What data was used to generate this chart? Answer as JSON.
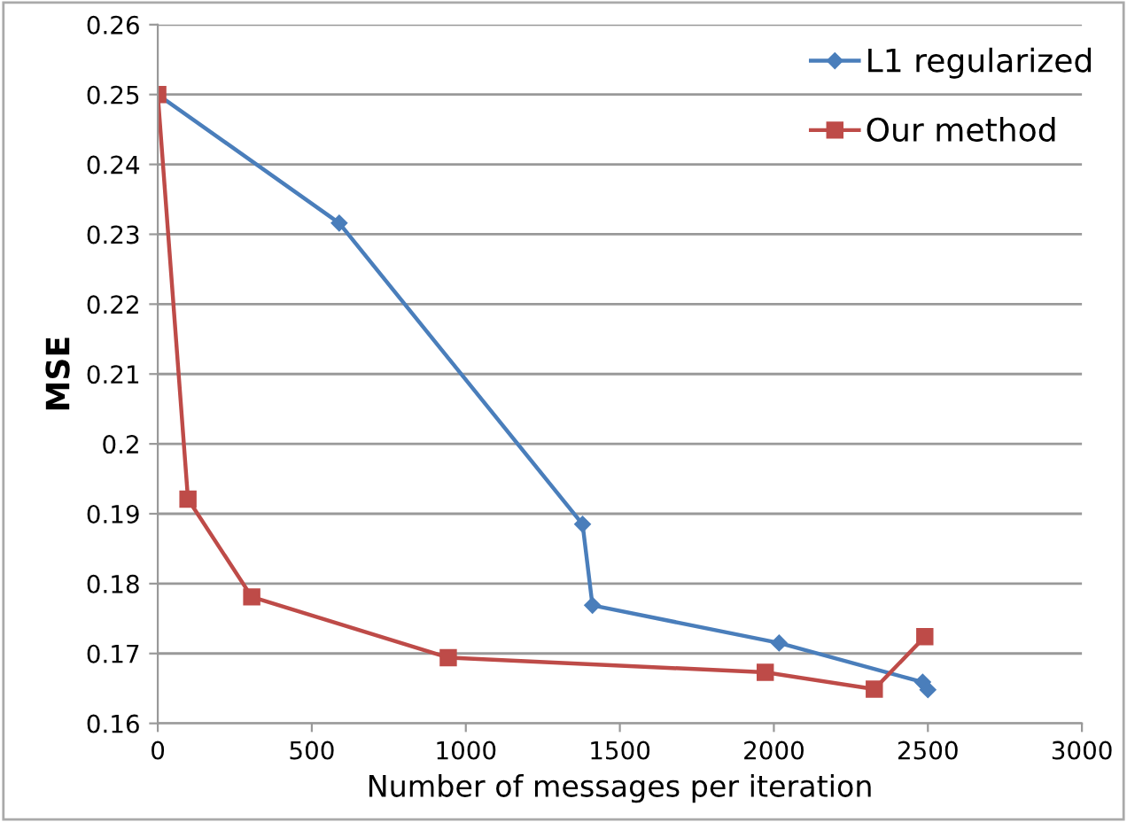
{
  "chart_data": {
    "type": "line",
    "xlabel": "Number of messages per iteration",
    "ylabel": "MSE",
    "xlim": [
      0,
      3000
    ],
    "xticks": [
      0,
      500,
      1000,
      1500,
      2000,
      2500,
      3000
    ],
    "ylim": [
      0.16,
      0.26
    ],
    "yticks": [
      0.16,
      0.17,
      0.18,
      0.19,
      0.2,
      0.21,
      0.22,
      0.23,
      0.24,
      0.25,
      0.26
    ],
    "grid": "y",
    "legend": "top right",
    "series": [
      {
        "name": "L1 regularized",
        "color": "#4a7ebb",
        "marker": "diamond",
        "x": [
          0,
          589,
          1379,
          1411,
          2017,
          2483,
          2500
        ],
        "values": [
          0.25,
          0.2316,
          0.1885,
          0.1769,
          0.1715,
          0.1659,
          0.1648
        ]
      },
      {
        "name": "Our method",
        "color": "#be4b48",
        "marker": "square",
        "x": [
          0,
          98,
          305,
          943,
          1972,
          2326,
          2490
        ],
        "values": [
          0.25,
          0.1921,
          0.1781,
          0.1694,
          0.1673,
          0.1649,
          0.1724
        ]
      }
    ]
  }
}
